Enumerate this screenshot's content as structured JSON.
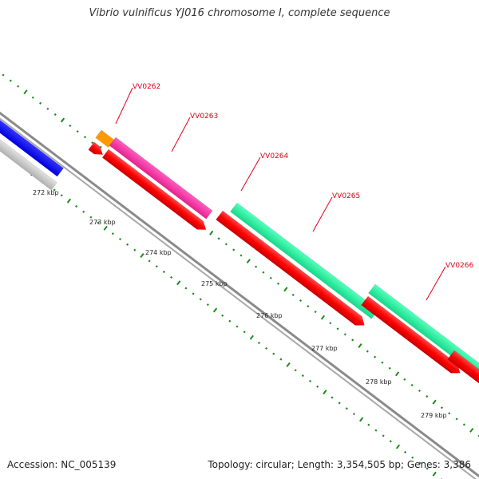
{
  "header": {
    "title": "Vibrio vulnificus YJ016 chromosome I, complete sequence"
  },
  "footer": {
    "accession": "Accession: NC_005139",
    "topology": "Topology: circular; Length: 3,354,505 bp; Genes: 3,386"
  },
  "map": {
    "ruler_labels": [
      "272 kbp",
      "273 kbp",
      "274 kbp",
      "275 kbp",
      "276 kbp",
      "277 kbp",
      "278 kbp",
      "279 kbp"
    ],
    "gene_labels": [
      "VV0262",
      "VV0263",
      "VV0264",
      "VV0265",
      "VV0266"
    ],
    "colors": {
      "backbone": "#8a8a8a",
      "tick": "#1a8a1a",
      "cds": "#ff0000",
      "gene_label": "#e0001b",
      "blue_feature": "#0000ff",
      "grey_feature": "#c8c8c8",
      "orange_feature": "#ff9900",
      "magenta_feature": "#ff33aa",
      "green_feature": "#22ff99"
    }
  }
}
